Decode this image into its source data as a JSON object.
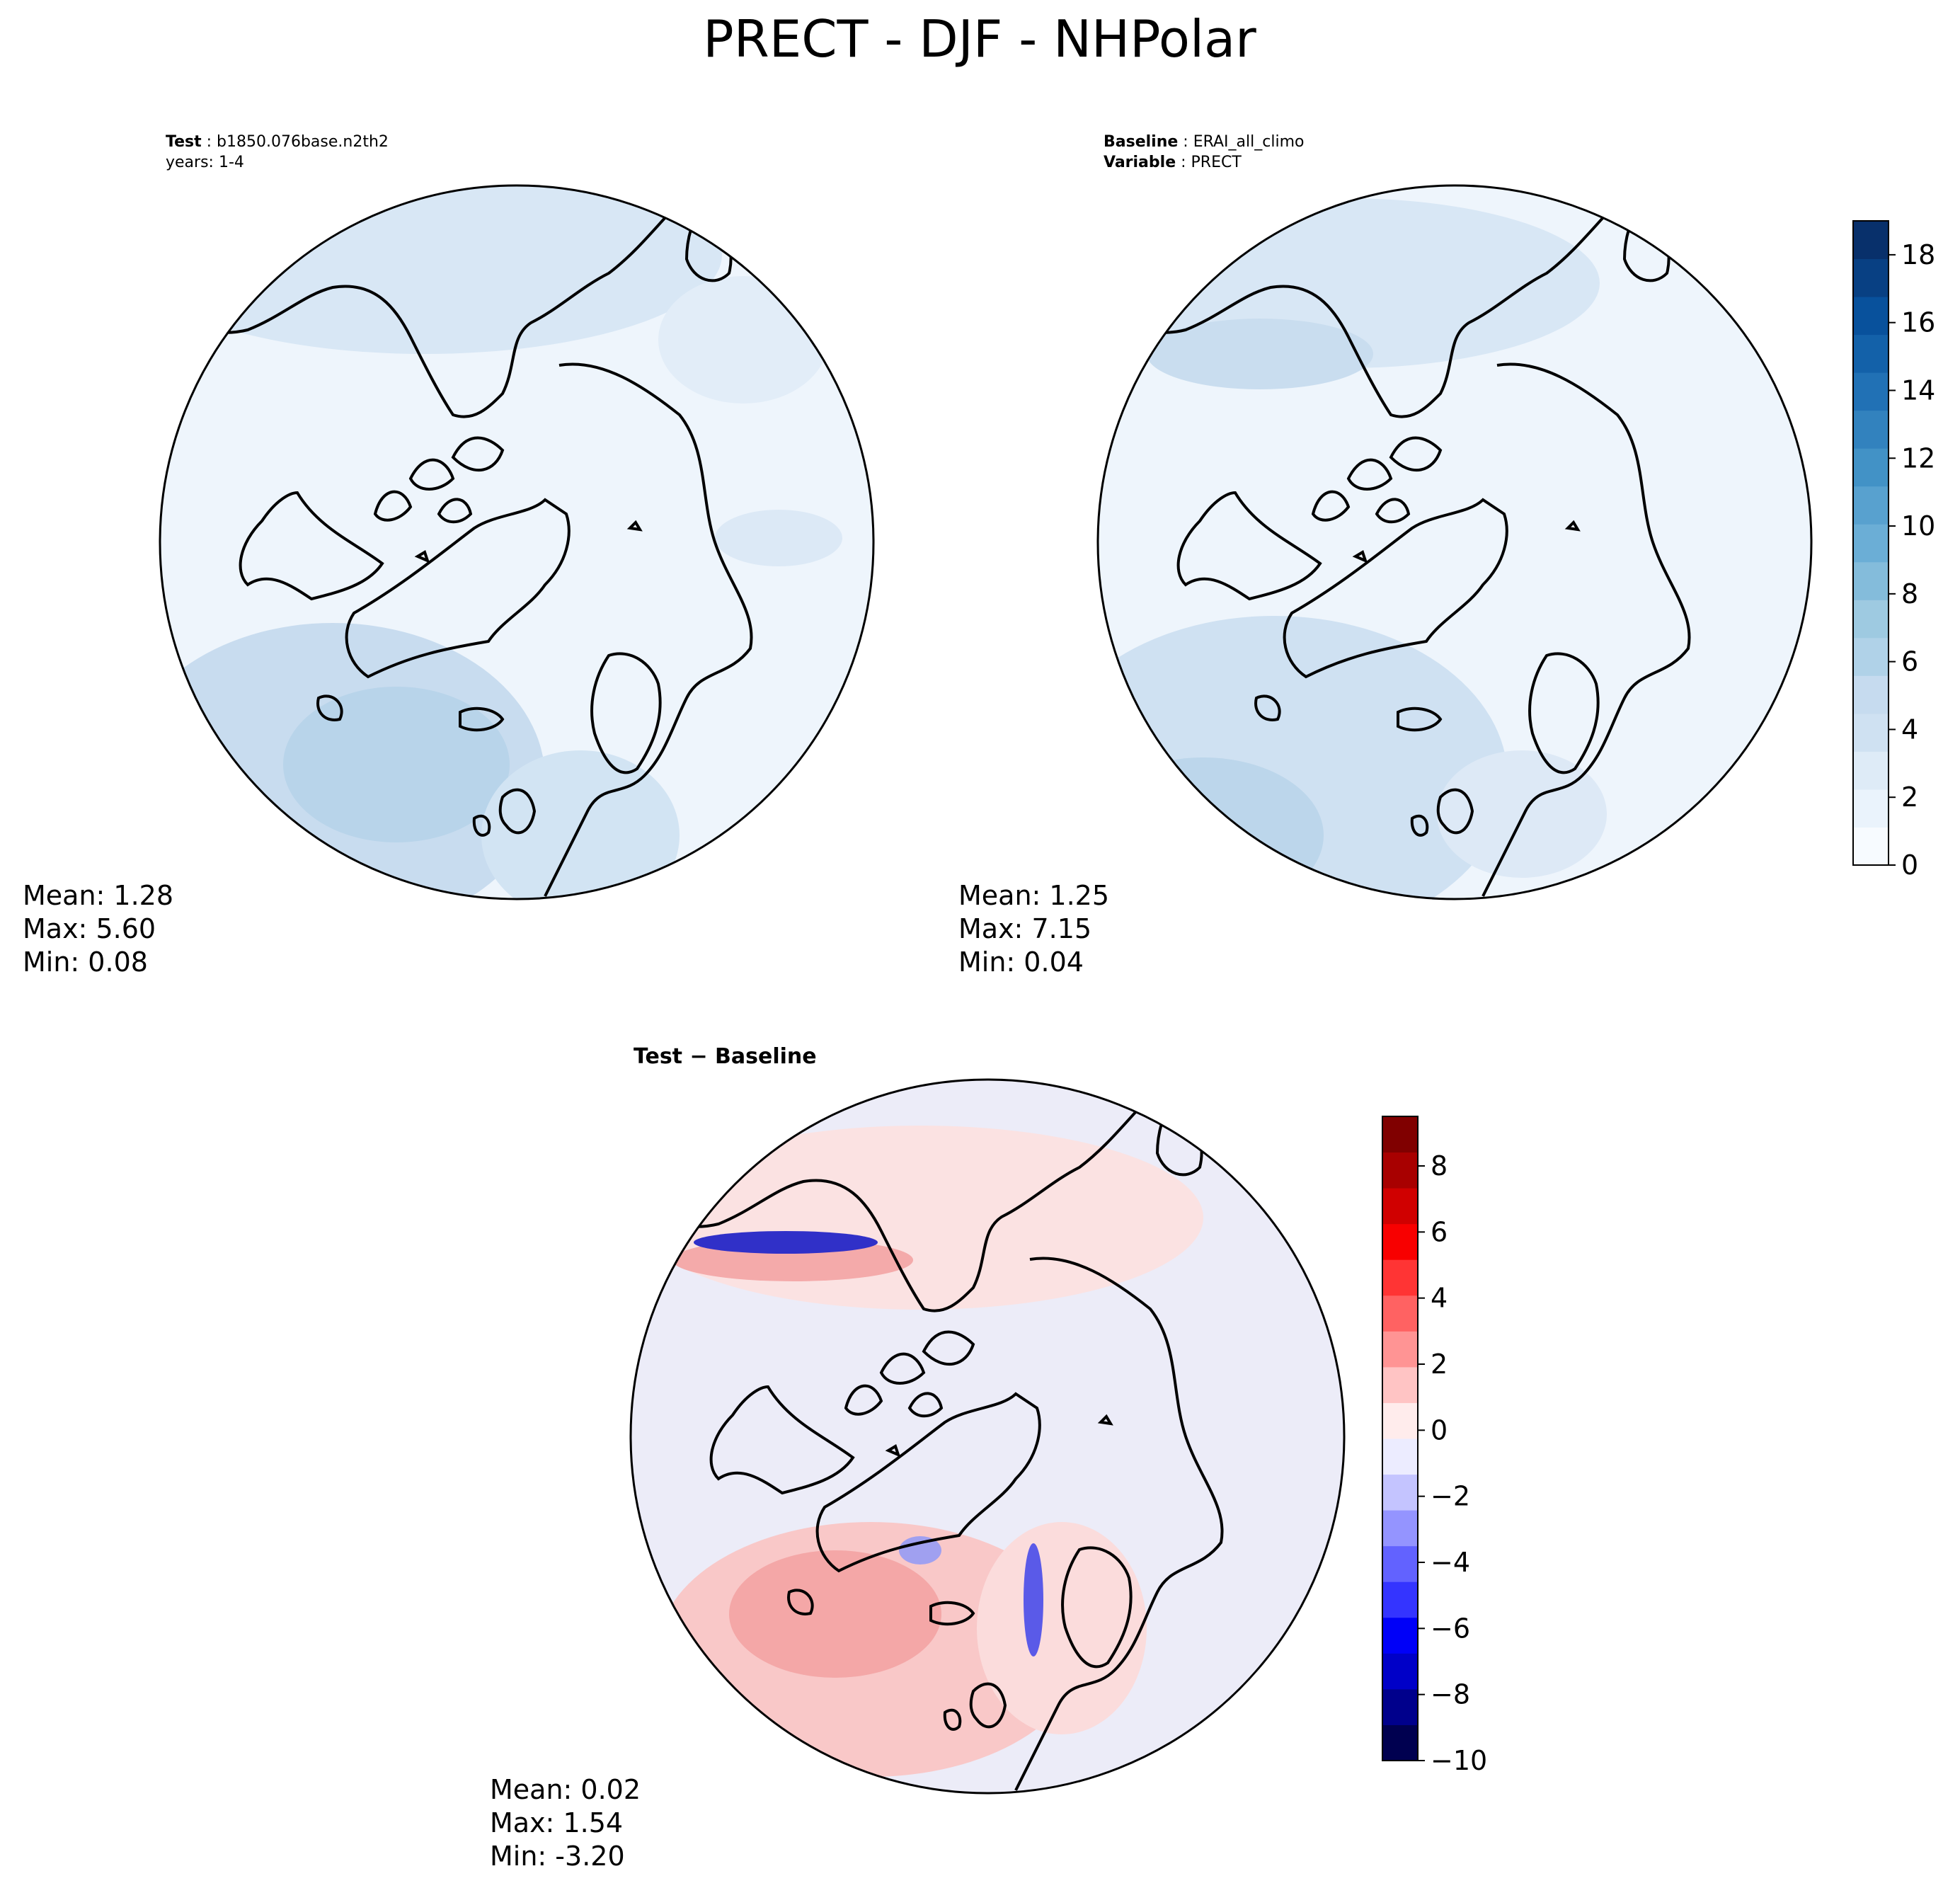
{
  "figure": {
    "title": "PRECT - DJF - NHPolar"
  },
  "panels": [
    {
      "id": "test",
      "header_lines": [
        {
          "key": "Test",
          "sep": " : ",
          "value": "b1850.076base.n2th2"
        },
        {
          "key": "",
          "sep": "",
          "value": "years: 1-4"
        }
      ],
      "stats": {
        "mean": "Mean:  1.28",
        "max": "Max:  5.60",
        "min": "Min:  0.08"
      }
    },
    {
      "id": "baseline",
      "header_lines": [
        {
          "key": "Baseline",
          "sep": " : ",
          "value": "ERAI_all_climo"
        },
        {
          "key": "Variable",
          "sep": " : ",
          "value": "PRECT"
        }
      ],
      "stats": {
        "mean": "Mean:  1.25",
        "max": "Max:  7.15",
        "min": "Min:  0.04"
      }
    },
    {
      "id": "diff",
      "header_lines": [
        {
          "key": "Test − Baseline",
          "sep": "",
          "value": ""
        }
      ],
      "stats": {
        "mean": "Mean:  0.02",
        "max": "Max:  1.54",
        "min": "Min: -3.20"
      }
    }
  ],
  "chart_data": [
    {
      "type": "heatmap",
      "projection": "north polar stereographic",
      "panel": "test",
      "colormap": "Blues",
      "value_range": [
        0,
        19
      ],
      "mean": 1.28,
      "max": 5.6,
      "min": 0.08
    },
    {
      "type": "heatmap",
      "projection": "north polar stereographic",
      "panel": "baseline",
      "colormap": "Blues",
      "value_range": [
        0,
        19
      ],
      "mean": 1.25,
      "max": 7.15,
      "min": 0.04
    },
    {
      "type": "heatmap",
      "projection": "north polar stereographic",
      "panel": "diff",
      "colormap": "seismic",
      "value_range": [
        -10,
        9.5
      ],
      "mean": 0.02,
      "max": 1.54,
      "min": -3.2
    }
  ],
  "colorbars": {
    "precip": {
      "ticks": [
        "0",
        "2",
        "4",
        "6",
        "8",
        "10",
        "12",
        "14",
        "16",
        "18"
      ],
      "colors": [
        "#f7fbff",
        "#eaf3fc",
        "#deebf7",
        "#cfe1f2",
        "#c6dbef",
        "#b0d2e8",
        "#9ecae1",
        "#84bcdb",
        "#6baed6",
        "#58a1cf",
        "#4292c6",
        "#3282be",
        "#2171b5",
        "#1361a9",
        "#08519c",
        "#084083",
        "#08306b"
      ]
    },
    "diff": {
      "ticks": [
        "−10",
        "−8",
        "−6",
        "−4",
        "−2",
        "0",
        "2",
        "4",
        "6",
        "8"
      ],
      "colors": [
        "#000050",
        "#00008c",
        "#0000c8",
        "#0000f8",
        "#3434ff",
        "#6262ff",
        "#9494ff",
        "#c4c4ff",
        "#ececff",
        "#ffecec",
        "#ffc4c4",
        "#ff9494",
        "#ff6262",
        "#ff3434",
        "#f80000",
        "#d00000",
        "#a80000",
        "#800000"
      ]
    }
  },
  "palette": {
    "land_line": "#000000",
    "precip_base": "#eef5fc",
    "diff_base": "#ececf8"
  }
}
